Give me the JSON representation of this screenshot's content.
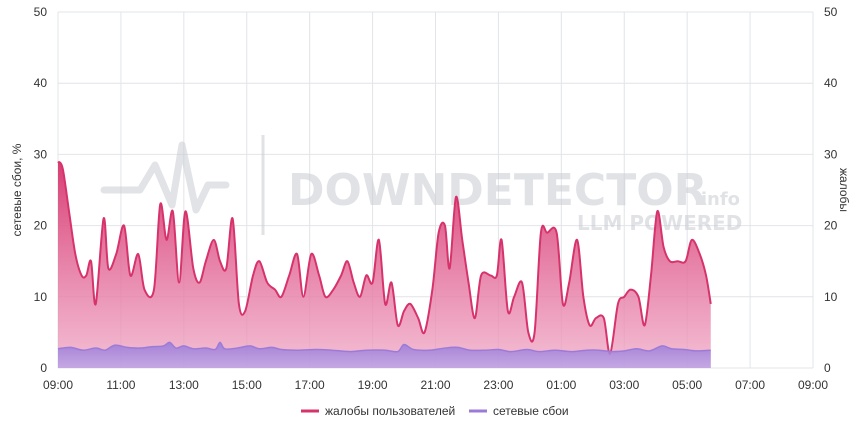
{
  "chart_data": {
    "type": "area",
    "ylabel_left": "сетевые сбои, %",
    "ylabel_right": "жалобы",
    "ylim": [
      0,
      50
    ],
    "y_ticks": [
      "0",
      "10",
      "20",
      "30",
      "40",
      "50"
    ],
    "x_tick_labels": [
      "09:00",
      "11:00",
      "13:00",
      "15:00",
      "17:00",
      "19:00",
      "21:00",
      "23:00",
      "01:00",
      "03:00",
      "05:00",
      "07:00",
      "09:00"
    ],
    "x_range_hours": [
      0,
      24
    ],
    "grid": true,
    "legend_position": "bottom-center",
    "series": [
      {
        "name": "жалобы пользователей",
        "color": "#d6336c",
        "points": [
          [
            0.0,
            29
          ],
          [
            0.15,
            28
          ],
          [
            0.35,
            22
          ],
          [
            0.55,
            16
          ],
          [
            0.75,
            13
          ],
          [
            0.9,
            13
          ],
          [
            1.05,
            15
          ],
          [
            1.2,
            9
          ],
          [
            1.45,
            21
          ],
          [
            1.6,
            14
          ],
          [
            1.85,
            16
          ],
          [
            2.1,
            20
          ],
          [
            2.3,
            13
          ],
          [
            2.55,
            16
          ],
          [
            2.75,
            11
          ],
          [
            3.05,
            11
          ],
          [
            3.25,
            23
          ],
          [
            3.45,
            18
          ],
          [
            3.65,
            22
          ],
          [
            3.85,
            12
          ],
          [
            4.05,
            22
          ],
          [
            4.3,
            14
          ],
          [
            4.5,
            12
          ],
          [
            4.7,
            15
          ],
          [
            4.95,
            18
          ],
          [
            5.15,
            15
          ],
          [
            5.35,
            14
          ],
          [
            5.55,
            21
          ],
          [
            5.75,
            9
          ],
          [
            5.95,
            8
          ],
          [
            6.2,
            13
          ],
          [
            6.4,
            15
          ],
          [
            6.65,
            12
          ],
          [
            6.9,
            11
          ],
          [
            7.1,
            10
          ],
          [
            7.35,
            13
          ],
          [
            7.6,
            16
          ],
          [
            7.8,
            10
          ],
          [
            8.05,
            16
          ],
          [
            8.3,
            13
          ],
          [
            8.5,
            10
          ],
          [
            8.75,
            11
          ],
          [
            9.0,
            13
          ],
          [
            9.2,
            15
          ],
          [
            9.4,
            12
          ],
          [
            9.6,
            10
          ],
          [
            9.8,
            13
          ],
          [
            10.0,
            12
          ],
          [
            10.2,
            18
          ],
          [
            10.4,
            9
          ],
          [
            10.6,
            12
          ],
          [
            10.8,
            6
          ],
          [
            11.0,
            8
          ],
          [
            11.2,
            9
          ],
          [
            11.45,
            7
          ],
          [
            11.65,
            5
          ],
          [
            11.9,
            11
          ],
          [
            12.1,
            19
          ],
          [
            12.3,
            20
          ],
          [
            12.45,
            14
          ],
          [
            12.65,
            24
          ],
          [
            12.85,
            18
          ],
          [
            13.05,
            12
          ],
          [
            13.25,
            7
          ],
          [
            13.45,
            13
          ],
          [
            13.75,
            13
          ],
          [
            13.95,
            13
          ],
          [
            14.1,
            18
          ],
          [
            14.3,
            8
          ],
          [
            14.5,
            10
          ],
          [
            14.75,
            12
          ],
          [
            14.95,
            5
          ],
          [
            15.15,
            5
          ],
          [
            15.35,
            19
          ],
          [
            15.55,
            19
          ],
          [
            15.85,
            19
          ],
          [
            16.05,
            9
          ],
          [
            16.25,
            12
          ],
          [
            16.5,
            18
          ],
          [
            16.7,
            10
          ],
          [
            16.9,
            6
          ],
          [
            17.1,
            7
          ],
          [
            17.35,
            7
          ],
          [
            17.55,
            2
          ],
          [
            17.8,
            9
          ],
          [
            18.0,
            10
          ],
          [
            18.2,
            11
          ],
          [
            18.45,
            10
          ],
          [
            18.65,
            6
          ],
          [
            18.85,
            13
          ],
          [
            19.05,
            22
          ],
          [
            19.25,
            17
          ],
          [
            19.45,
            15
          ],
          [
            19.7,
            15
          ],
          [
            19.95,
            15
          ],
          [
            20.15,
            18
          ],
          [
            20.4,
            16
          ],
          [
            20.6,
            13
          ],
          [
            20.75,
            9
          ]
        ]
      },
      {
        "name": "сетевые сбои",
        "color": "#9c7bd8",
        "points": [
          [
            0.0,
            2.7
          ],
          [
            0.4,
            2.9
          ],
          [
            0.8,
            2.5
          ],
          [
            1.2,
            2.8
          ],
          [
            1.5,
            2.5
          ],
          [
            1.8,
            3.2
          ],
          [
            2.2,
            2.9
          ],
          [
            2.6,
            2.8
          ],
          [
            3.0,
            3.0
          ],
          [
            3.35,
            3.1
          ],
          [
            3.55,
            3.6
          ],
          [
            3.75,
            2.8
          ],
          [
            4.0,
            3.1
          ],
          [
            4.3,
            2.7
          ],
          [
            4.7,
            2.8
          ],
          [
            5.0,
            2.6
          ],
          [
            5.15,
            3.6
          ],
          [
            5.3,
            2.7
          ],
          [
            5.7,
            2.8
          ],
          [
            6.1,
            3.1
          ],
          [
            6.4,
            2.7
          ],
          [
            6.8,
            2.9
          ],
          [
            7.1,
            2.6
          ],
          [
            7.6,
            2.5
          ],
          [
            8.2,
            2.6
          ],
          [
            8.7,
            2.5
          ],
          [
            9.3,
            2.3
          ],
          [
            9.8,
            2.5
          ],
          [
            10.4,
            2.5
          ],
          [
            10.8,
            2.3
          ],
          [
            11.0,
            3.3
          ],
          [
            11.3,
            2.6
          ],
          [
            11.8,
            2.5
          ],
          [
            12.3,
            2.8
          ],
          [
            12.7,
            2.9
          ],
          [
            13.1,
            2.5
          ],
          [
            13.6,
            2.5
          ],
          [
            14.0,
            2.6
          ],
          [
            14.4,
            2.3
          ],
          [
            14.9,
            2.6
          ],
          [
            15.3,
            2.3
          ],
          [
            15.8,
            2.5
          ],
          [
            16.3,
            2.3
          ],
          [
            16.8,
            2.5
          ],
          [
            17.2,
            2.5
          ],
          [
            17.6,
            2.3
          ],
          [
            18.0,
            2.4
          ],
          [
            18.4,
            2.7
          ],
          [
            18.8,
            2.4
          ],
          [
            19.2,
            3.1
          ],
          [
            19.5,
            2.7
          ],
          [
            19.9,
            2.6
          ],
          [
            20.3,
            2.4
          ],
          [
            20.75,
            2.5
          ]
        ]
      }
    ],
    "watermark": {
      "brand": "DOWNDETECTOR",
      "suffix": ".info",
      "tagline": "LLM POWERED"
    }
  }
}
